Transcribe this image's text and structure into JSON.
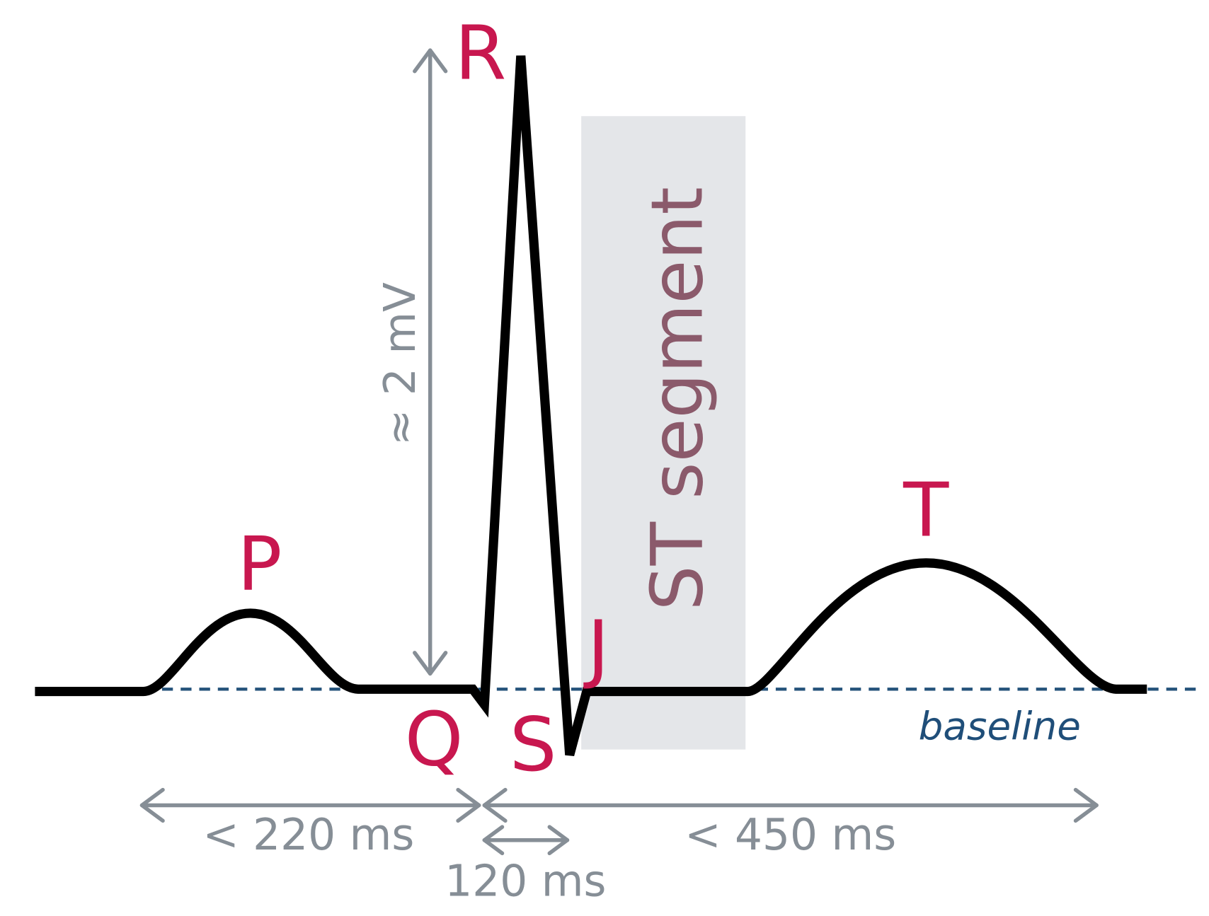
{
  "waves": {
    "p": "P",
    "q": "Q",
    "r": "R",
    "s": "S",
    "t": "T",
    "j": "J"
  },
  "segment": "ST segment",
  "baseline": "baseline",
  "measurements": {
    "amplitude": "≈ 2 mV",
    "pr": "< 220 ms",
    "qrs": "120 ms",
    "qt": "< 450 ms"
  }
}
